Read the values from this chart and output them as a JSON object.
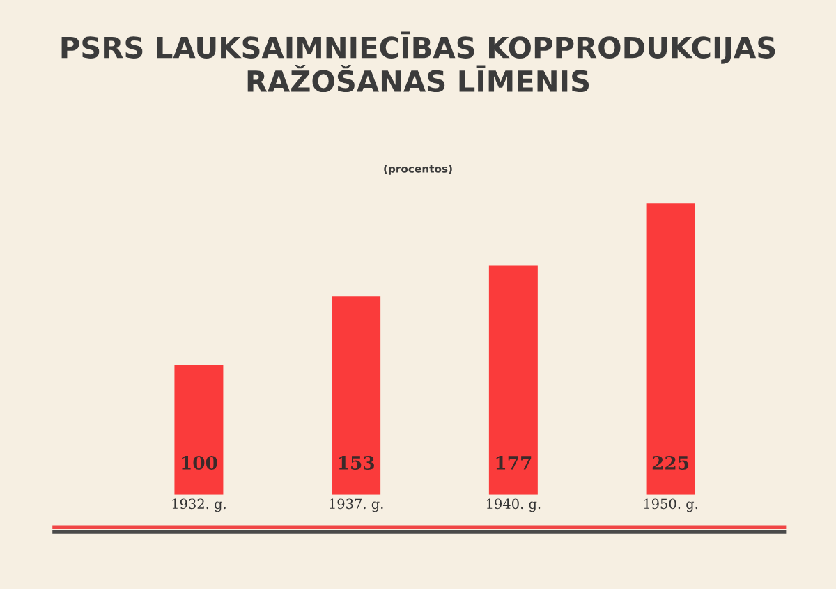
{
  "chart_data": {
    "type": "bar",
    "title": "PSRS LAUKSAIMNIECĪBAS KOPPRODUKCIJAS\nRAŽOŠANAS LĪMENIS",
    "subtitle": "(procentos)",
    "categories": [
      "1932. g.",
      "1937. g.",
      "1940. g.",
      "1950. g."
    ],
    "values": [
      100,
      153,
      177,
      225
    ],
    "color": "#fa3b3b",
    "data_labels": true,
    "grid": false
  }
}
